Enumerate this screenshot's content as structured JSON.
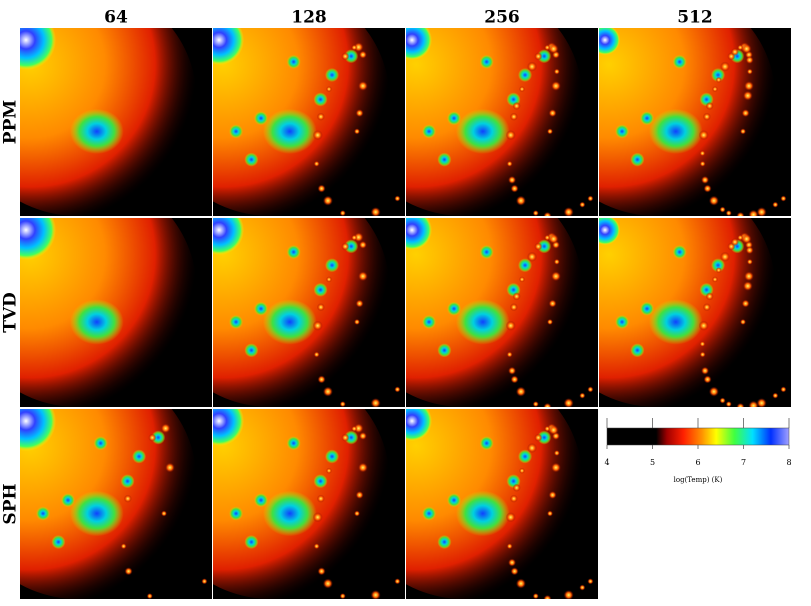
{
  "columns": [
    "64",
    "128",
    "256",
    "512"
  ],
  "rows": [
    "PPM",
    "TVD",
    "SPH"
  ],
  "colorbar": {
    "label": "log(Temp) (K)",
    "range": [
      4,
      8
    ],
    "ticks": [
      4,
      5,
      6,
      7,
      8
    ]
  }
}
